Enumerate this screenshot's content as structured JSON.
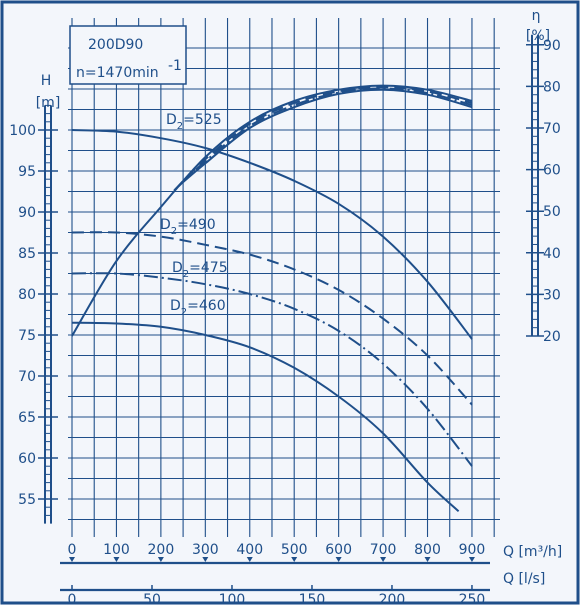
{
  "chart_data": {
    "type": "line",
    "info": {
      "model": "200D90",
      "speed": "n=1470min",
      "speed_sup": "-1"
    },
    "colors": {
      "ink": "#1f4f8a",
      "background": "#f3f6fb"
    },
    "grid": true,
    "axes": {
      "head": {
        "label": "H",
        "unit": "[m]",
        "ticks": [
          55,
          60,
          65,
          70,
          75,
          80,
          85,
          90,
          95,
          100
        ],
        "range": [
          52,
          103
        ]
      },
      "efficiency": {
        "label": "η",
        "unit": "[%]",
        "ticks": [
          20,
          30,
          40,
          50,
          60,
          70,
          80,
          90
        ],
        "range": [
          20,
          90
        ]
      },
      "flow_m3h": {
        "label": "Q [m³/h]",
        "ticks": [
          0,
          100,
          200,
          300,
          400,
          500,
          600,
          700,
          800,
          900
        ]
      },
      "flow_ls": {
        "label": "Q [l/s]",
        "ticks": [
          0,
          50,
          100,
          150,
          200,
          250
        ]
      }
    },
    "head_curves": [
      {
        "name": "D2=525",
        "label_main": "D",
        "label_sub": "2",
        "label_rest": "=525",
        "style": "solid",
        "points": [
          [
            0,
            100
          ],
          [
            100,
            99.8
          ],
          [
            200,
            99
          ],
          [
            300,
            97.8
          ],
          [
            400,
            96
          ],
          [
            500,
            93.8
          ],
          [
            600,
            91
          ],
          [
            700,
            87
          ],
          [
            800,
            81.5
          ],
          [
            900,
            74.5
          ]
        ]
      },
      {
        "name": "D2=490",
        "label_main": "D",
        "label_sub": "2",
        "label_rest": "=490",
        "style": "dashed",
        "points": [
          [
            0,
            87.5
          ],
          [
            100,
            87.5
          ],
          [
            200,
            87
          ],
          [
            300,
            86
          ],
          [
            400,
            84.8
          ],
          [
            500,
            83
          ],
          [
            600,
            80.5
          ],
          [
            700,
            77
          ],
          [
            800,
            72.5
          ],
          [
            900,
            66.5
          ]
        ]
      },
      {
        "name": "D2=475",
        "label_main": "D",
        "label_sub": "2",
        "label_rest": "=475",
        "style": "dashdot",
        "points": [
          [
            0,
            82.5
          ],
          [
            100,
            82.5
          ],
          [
            200,
            82
          ],
          [
            300,
            81.2
          ],
          [
            400,
            80
          ],
          [
            500,
            78.2
          ],
          [
            600,
            75.5
          ],
          [
            700,
            71.5
          ],
          [
            800,
            66
          ],
          [
            900,
            59
          ]
        ]
      },
      {
        "name": "D2=460",
        "label_main": "D",
        "label_sub": "2",
        "label_rest": "=460",
        "style": "solid",
        "points": [
          [
            0,
            76.5
          ],
          [
            100,
            76.4
          ],
          [
            200,
            76
          ],
          [
            300,
            75
          ],
          [
            400,
            73.5
          ],
          [
            500,
            71
          ],
          [
            600,
            67.5
          ],
          [
            700,
            63
          ],
          [
            800,
            57
          ],
          [
            870,
            53.5
          ]
        ]
      }
    ],
    "efficiency_curves": [
      {
        "style": "solid",
        "points": [
          [
            0,
            20
          ],
          [
            100,
            38
          ],
          [
            200,
            51
          ],
          [
            300,
            63
          ],
          [
            400,
            71.5
          ],
          [
            500,
            76.5
          ],
          [
            600,
            79.2
          ],
          [
            700,
            80.2
          ],
          [
            800,
            79.2
          ],
          [
            900,
            76.5
          ]
        ]
      },
      {
        "style": "dashed",
        "points": [
          [
            230,
            55
          ],
          [
            300,
            62.5
          ],
          [
            400,
            71
          ],
          [
            500,
            76
          ],
          [
            600,
            78.8
          ],
          [
            700,
            79.8
          ],
          [
            800,
            78.8
          ],
          [
            900,
            76
          ]
        ]
      },
      {
        "style": "dashdot",
        "points": [
          [
            240,
            56
          ],
          [
            300,
            62
          ],
          [
            400,
            70.5
          ],
          [
            500,
            75.5
          ],
          [
            600,
            78.5
          ],
          [
            700,
            79.5
          ],
          [
            800,
            78.4
          ],
          [
            900,
            75.5
          ]
        ]
      },
      {
        "style": "solid",
        "points": [
          [
            250,
            57
          ],
          [
            300,
            61.5
          ],
          [
            400,
            70
          ],
          [
            500,
            75
          ],
          [
            600,
            78.2
          ],
          [
            700,
            79.2
          ],
          [
            800,
            78
          ],
          [
            900,
            75
          ]
        ]
      }
    ]
  }
}
